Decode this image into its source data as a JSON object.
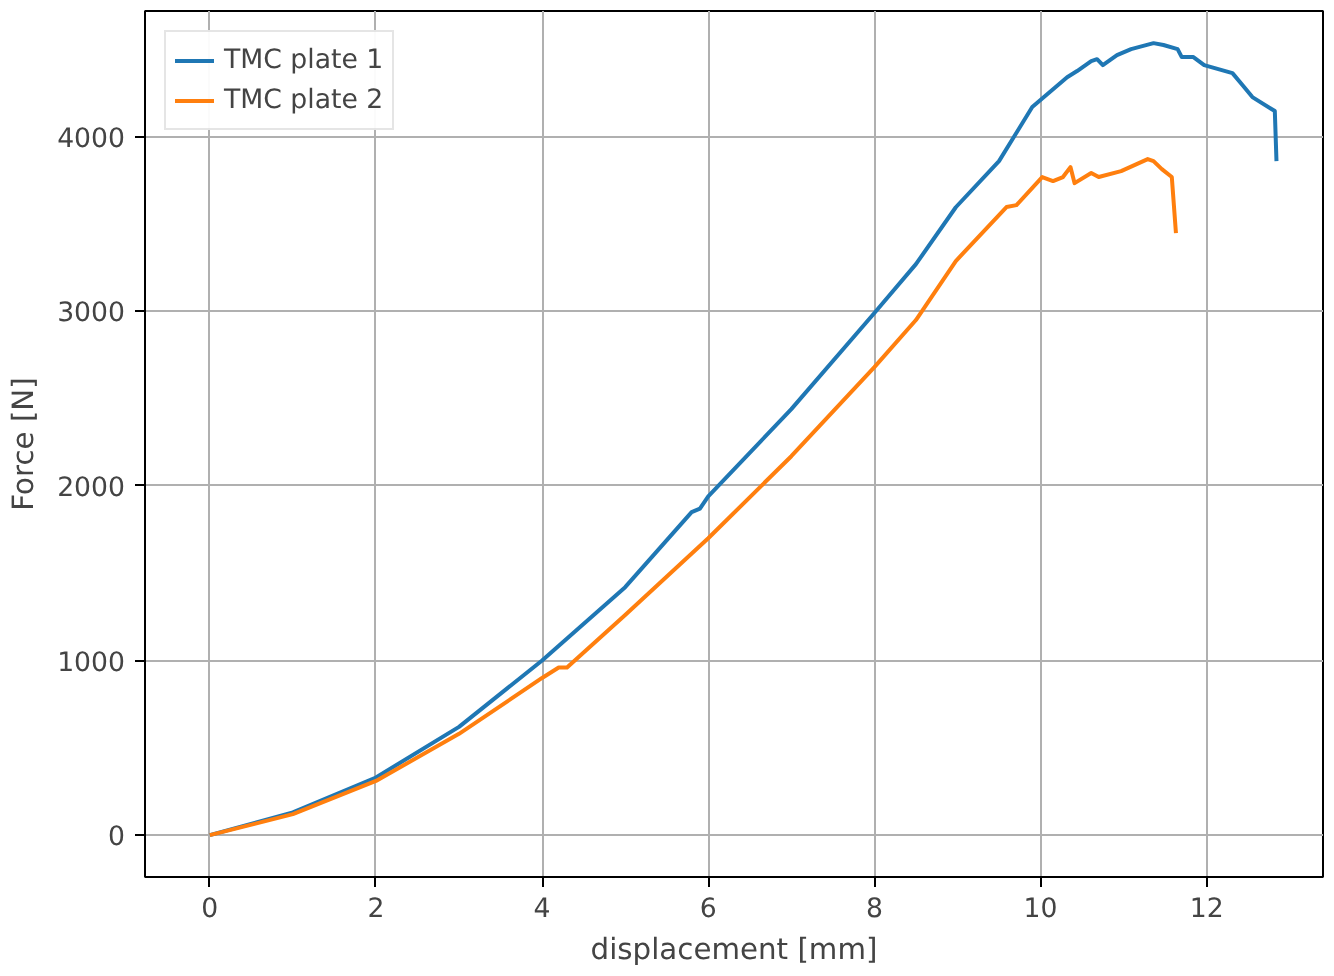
{
  "chart_data": {
    "type": "line",
    "xlabel": "displacement [mm]",
    "ylabel": "Force [N]",
    "xlim": [
      -0.78,
      13.4
    ],
    "ylim": [
      -240,
      4720
    ],
    "xticks": [
      0,
      2,
      4,
      6,
      8,
      10,
      12
    ],
    "yticks": [
      0,
      1000,
      2000,
      3000,
      4000
    ],
    "grid": true,
    "legend": "top left",
    "series": [
      {
        "name": "TMC plate 1",
        "color": "#1f77b4",
        "x": [
          0,
          1,
          2,
          3,
          4,
          5,
          5.8,
          5.9,
          6,
          7,
          8,
          8.5,
          8.98,
          9.5,
          9.9,
          10.32,
          10.44,
          10.61,
          10.68,
          10.75,
          10.92,
          11.09,
          11.36,
          11.48,
          11.65,
          11.7,
          11.84,
          11.97,
          12.31,
          12.43,
          12.55,
          12.82,
          12.84
        ],
        "values": [
          0,
          130,
          330,
          620,
          1000,
          1420,
          1850,
          1870,
          1940,
          2440,
          2990,
          3270,
          3596,
          3860,
          4170,
          4341,
          4376,
          4433,
          4444,
          4410,
          4467,
          4502,
          4536,
          4525,
          4502,
          4456,
          4456,
          4410,
          4364,
          4296,
          4227,
          4147,
          3860
        ]
      },
      {
        "name": "TMC plate 2",
        "color": "#ff7f0e",
        "x": [
          0,
          1,
          2,
          3,
          4,
          4.2,
          4.3,
          5,
          6,
          7,
          8,
          8.5,
          8.98,
          9.59,
          9.71,
          10.02,
          10.15,
          10.27,
          10.36,
          10.41,
          10.61,
          10.7,
          10.97,
          11.29,
          11.36,
          11.46,
          11.58,
          11.63
        ],
        "values": [
          0,
          120,
          310,
          580,
          900,
          960,
          960,
          1260,
          1700,
          2170,
          2680,
          2950,
          3288,
          3597,
          3608,
          3769,
          3746,
          3769,
          3826,
          3734,
          3792,
          3769,
          3803,
          3872,
          3860,
          3814,
          3769,
          3448
        ]
      }
    ]
  }
}
